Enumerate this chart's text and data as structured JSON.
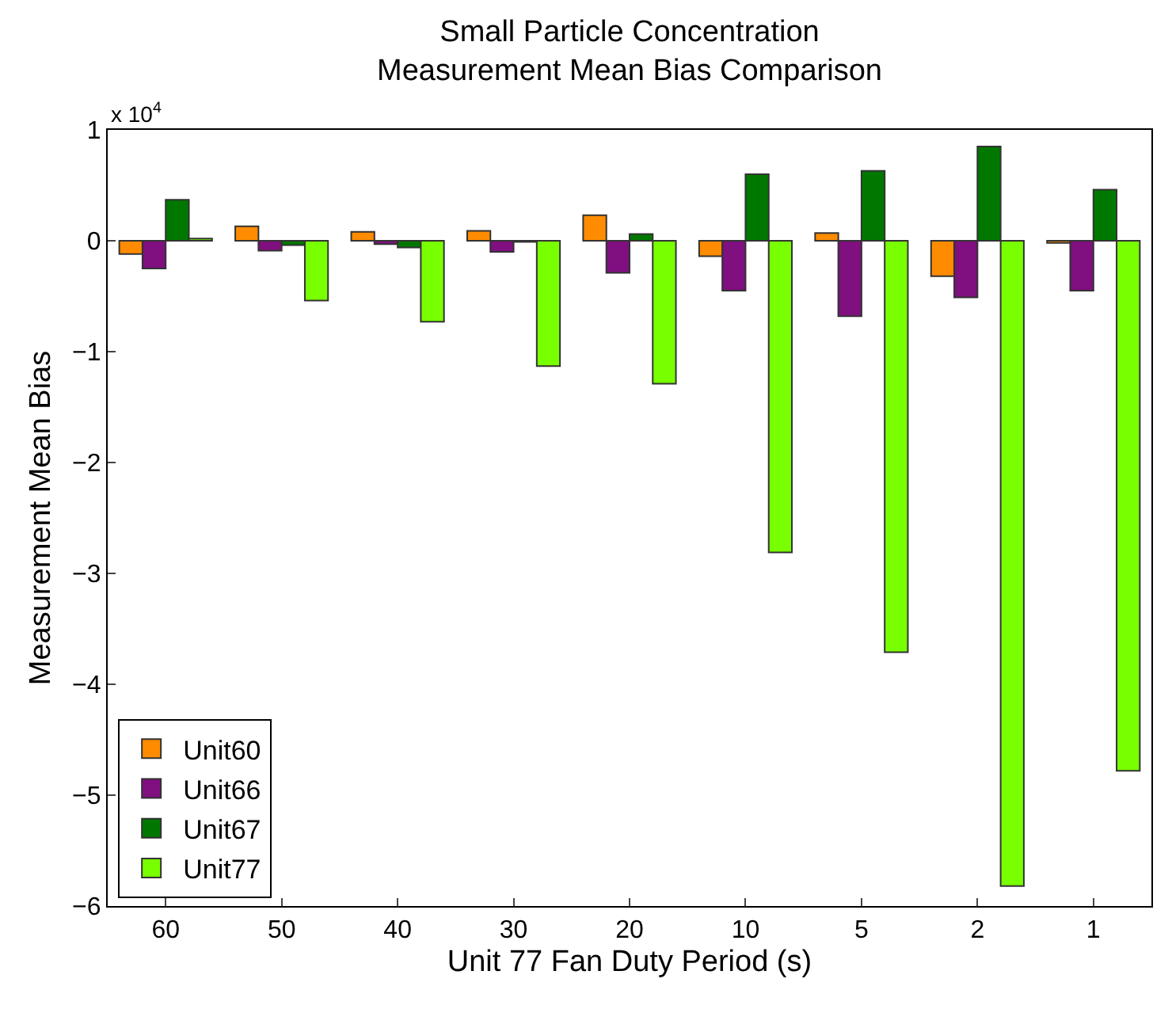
{
  "chart_data": {
    "type": "bar",
    "title": "Small Particle Concentration\nMeasurement Mean Bias Comparison",
    "xlabel": "Unit 77 Fan Duty Period (s)",
    "ylabel": "Measurement Mean Bias",
    "annotations": [
      "x 10$^{4}$"
    ],
    "categories": [
      "60",
      "50",
      "40",
      "30",
      "20",
      "10",
      "5",
      "2",
      "1"
    ],
    "series": [
      {
        "name": "Unit60",
        "color": "#ff8c00",
        "values": [
          -0.12,
          0.13,
          0.08,
          0.09,
          0.23,
          -0.14,
          0.07,
          -0.32,
          -0.02
        ]
      },
      {
        "name": "Unit66",
        "color": "#800f80",
        "values": [
          -0.25,
          -0.09,
          -0.03,
          -0.1,
          -0.29,
          -0.45,
          -0.68,
          -0.51,
          -0.45
        ]
      },
      {
        "name": "Unit67",
        "color": "#007800",
        "values": [
          0.37,
          -0.04,
          -0.06,
          -0.01,
          0.06,
          0.6,
          0.63,
          0.85,
          0.46
        ]
      },
      {
        "name": "Unit77",
        "color": "#78ff00",
        "values": [
          0.02,
          -0.54,
          -0.73,
          -1.13,
          -1.29,
          -2.81,
          -3.71,
          -5.82,
          -4.78
        ]
      }
    ],
    "ylim": [
      -6,
      1
    ],
    "yticks": [
      -6,
      -5,
      -4,
      -3,
      -2,
      -1,
      0,
      1
    ],
    "grid": false,
    "legend": "bottom left"
  }
}
